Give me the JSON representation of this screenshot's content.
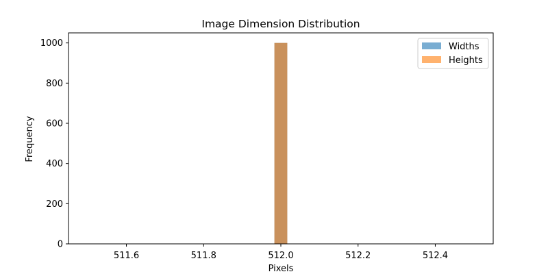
{
  "chart_data": {
    "type": "bar",
    "title": "Image Dimension Distribution",
    "xlabel": "Pixels",
    "ylabel": "Frequency",
    "xlim": [
      511.45,
      512.55
    ],
    "ylim": [
      0,
      1050
    ],
    "x_ticks": [
      511.6,
      511.8,
      512.0,
      512.2,
      512.4
    ],
    "x_tick_labels": [
      "511.6",
      "511.8",
      "512.0",
      "512.2",
      "512.4"
    ],
    "y_ticks": [
      0,
      200,
      400,
      600,
      800,
      1000
    ],
    "y_tick_labels": [
      "0",
      "200",
      "400",
      "600",
      "800",
      "1000"
    ],
    "bin_width": 0.0333,
    "series": [
      {
        "name": "Widths",
        "color": "#1f77b4",
        "alpha": 0.6,
        "bins": [
          {
            "x_start": 511.9833,
            "x_end": 512.0167,
            "count": 1000
          }
        ]
      },
      {
        "name": "Heights",
        "color": "#ff7f0e",
        "alpha": 0.6,
        "bins": [
          {
            "x_start": 511.9833,
            "x_end": 512.0167,
            "count": 1000
          }
        ]
      }
    ],
    "legend": {
      "position": "top-right"
    },
    "grid": false
  }
}
